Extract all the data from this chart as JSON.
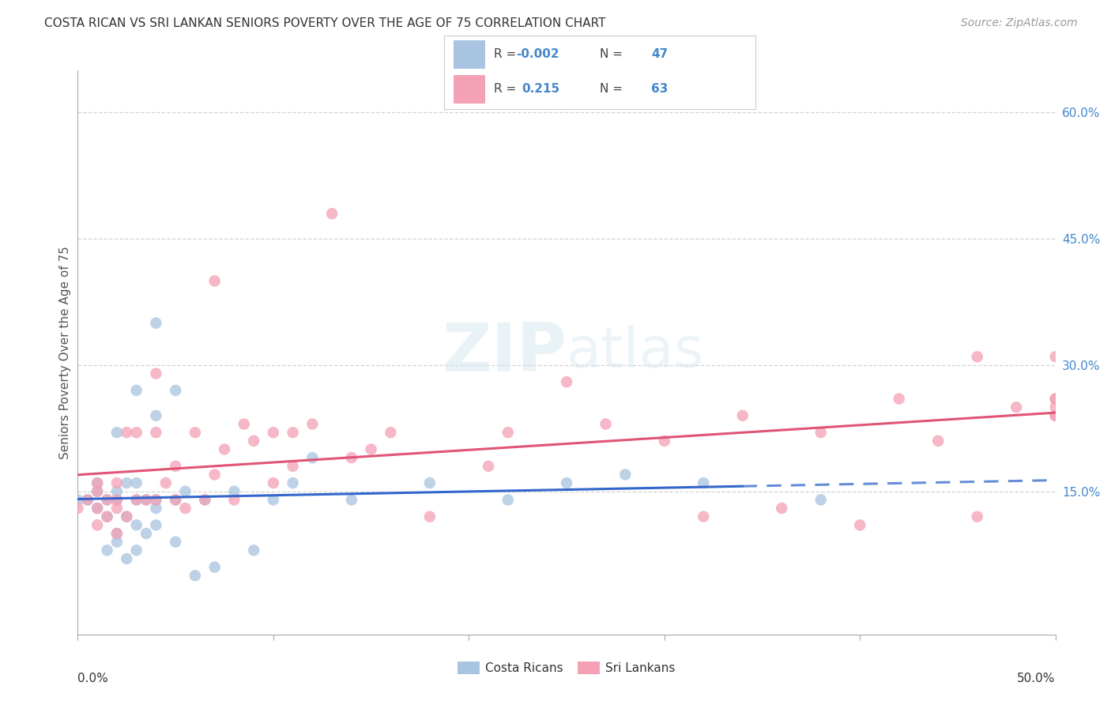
{
  "title": "COSTA RICAN VS SRI LANKAN SENIORS POVERTY OVER THE AGE OF 75 CORRELATION CHART",
  "source": "Source: ZipAtlas.com",
  "ylabel": "Seniors Poverty Over the Age of 75",
  "xlim": [
    0.0,
    0.5
  ],
  "ylim": [
    -0.02,
    0.65
  ],
  "yticks": [
    0.15,
    0.3,
    0.45,
    0.6
  ],
  "right_ytick_labels": [
    "15.0%",
    "30.0%",
    "45.0%",
    "60.0%"
  ],
  "color_blue": "#a8c4e0",
  "color_pink": "#f4a0b5",
  "line_blue": "#3366cc",
  "line_pink": "#e05575",
  "watermark_zip": "ZIP",
  "watermark_atlas": "atlas",
  "background_color": "#ffffff",
  "grid_color": "#c8c8c8",
  "title_color": "#333333",
  "source_color": "#999999",
  "axis_label_color": "#555555",
  "right_tick_color": "#4488cc",
  "legend_text_color": "#4488cc",
  "legend_label_color": "#333333",
  "costa_rican_x": [
    0.0,
    0.005,
    0.01,
    0.01,
    0.01,
    0.015,
    0.015,
    0.015,
    0.02,
    0.02,
    0.02,
    0.02,
    0.02,
    0.025,
    0.025,
    0.025,
    0.03,
    0.03,
    0.03,
    0.03,
    0.03,
    0.035,
    0.035,
    0.04,
    0.04,
    0.04,
    0.04,
    0.04,
    0.05,
    0.05,
    0.05,
    0.055,
    0.06,
    0.065,
    0.07,
    0.08,
    0.09,
    0.1,
    0.11,
    0.12,
    0.14,
    0.18,
    0.22,
    0.25,
    0.28,
    0.32,
    0.38
  ],
  "costa_rican_y": [
    0.14,
    0.14,
    0.13,
    0.15,
    0.16,
    0.08,
    0.12,
    0.14,
    0.09,
    0.1,
    0.14,
    0.15,
    0.22,
    0.07,
    0.12,
    0.16,
    0.08,
    0.11,
    0.14,
    0.27,
    0.16,
    0.1,
    0.14,
    0.11,
    0.13,
    0.14,
    0.24,
    0.35,
    0.09,
    0.14,
    0.27,
    0.15,
    0.05,
    0.14,
    0.06,
    0.15,
    0.08,
    0.14,
    0.16,
    0.19,
    0.14,
    0.16,
    0.14,
    0.16,
    0.17,
    0.16,
    0.14
  ],
  "sri_lankan_x": [
    0.0,
    0.005,
    0.01,
    0.01,
    0.01,
    0.01,
    0.015,
    0.015,
    0.02,
    0.02,
    0.02,
    0.02,
    0.025,
    0.025,
    0.03,
    0.03,
    0.035,
    0.04,
    0.04,
    0.04,
    0.045,
    0.05,
    0.05,
    0.055,
    0.06,
    0.065,
    0.07,
    0.07,
    0.075,
    0.08,
    0.085,
    0.09,
    0.1,
    0.1,
    0.11,
    0.11,
    0.12,
    0.13,
    0.14,
    0.15,
    0.16,
    0.18,
    0.21,
    0.22,
    0.25,
    0.27,
    0.3,
    0.32,
    0.34,
    0.36,
    0.38,
    0.4,
    0.42,
    0.44,
    0.46,
    0.46,
    0.48,
    0.5,
    0.5,
    0.5,
    0.5,
    0.5,
    0.5
  ],
  "sri_lankan_y": [
    0.13,
    0.14,
    0.11,
    0.13,
    0.15,
    0.16,
    0.12,
    0.14,
    0.1,
    0.13,
    0.14,
    0.16,
    0.12,
    0.22,
    0.14,
    0.22,
    0.14,
    0.14,
    0.22,
    0.29,
    0.16,
    0.14,
    0.18,
    0.13,
    0.22,
    0.14,
    0.17,
    0.4,
    0.2,
    0.14,
    0.23,
    0.21,
    0.16,
    0.22,
    0.18,
    0.22,
    0.23,
    0.48,
    0.19,
    0.2,
    0.22,
    0.12,
    0.18,
    0.22,
    0.28,
    0.23,
    0.21,
    0.12,
    0.24,
    0.13,
    0.22,
    0.11,
    0.26,
    0.21,
    0.31,
    0.12,
    0.25,
    0.24,
    0.26,
    0.24,
    0.25,
    0.26,
    0.31
  ]
}
